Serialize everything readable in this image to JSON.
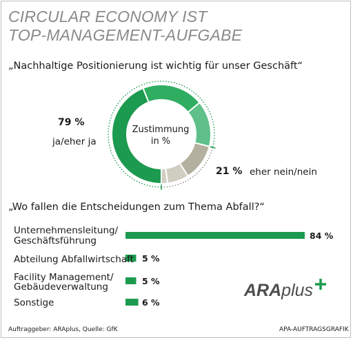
{
  "title_lines": [
    "CIRCULAR ECONOMY IST",
    "TOP-MANAGEMENT-AUFGABE"
  ],
  "colors": {
    "green_dark": "#1c9a4f",
    "green_mid": "#2fae62",
    "green_light": "#5fc08a",
    "grey_dark": "#b3b09f",
    "grey_light": "#d0cec0",
    "title_grey": "#8a8a8a"
  },
  "chart_data": [
    {
      "type": "pie",
      "title": "„Nachhaltige Positionierung ist wichtig für unser Geschäft“",
      "center_label": [
        "Zustimmung",
        "in %"
      ],
      "slices": [
        {
          "group": "ja/eher ja",
          "value": 44
        },
        {
          "group": "ja/eher ja",
          "value": 20
        },
        {
          "group": "ja/eher ja",
          "value": 15
        },
        {
          "group": "eher nein/nein",
          "value": 12
        },
        {
          "group": "eher nein/nein",
          "value": 7
        },
        {
          "group": "eher nein/nein",
          "value": 2
        }
      ],
      "groups": [
        {
          "name": "ja/eher ja",
          "value_label": "79 %"
        },
        {
          "name": "eher nein/nein",
          "value_label": "21 %"
        }
      ]
    },
    {
      "type": "bar",
      "title": "„Wo fallen die Entscheidungen zum Thema Abfall?“",
      "categories": [
        [
          "Unternehmensleitung/",
          "Geschäftsführung"
        ],
        [
          "Abteilung Abfallwirtschaft"
        ],
        [
          "Facility Management/",
          "Gebäudeverwaltung"
        ],
        [
          "Sonstige"
        ]
      ],
      "values": [
        84,
        5,
        5,
        6
      ],
      "value_labels": [
        "84 %",
        "5 %",
        "5 %",
        "6 %"
      ],
      "xlim": [
        0,
        84
      ]
    }
  ],
  "logo": {
    "main": "ARA",
    "sub": "plus",
    "mark": "+"
  },
  "footer": {
    "left": "Auftraggeber: ARAplus, Quelle: GfK",
    "right": "APA-AUFTRAGSGRAFIK"
  }
}
